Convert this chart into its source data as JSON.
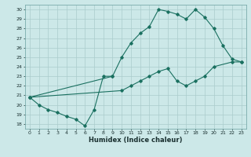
{
  "xlabel": "Humidex (Indice chaleur)",
  "xlim": [
    -0.5,
    23.5
  ],
  "ylim": [
    17.5,
    30.5
  ],
  "yticks": [
    18,
    19,
    20,
    21,
    22,
    23,
    24,
    25,
    26,
    27,
    28,
    29,
    30
  ],
  "xticks": [
    0,
    1,
    2,
    3,
    4,
    5,
    6,
    7,
    8,
    9,
    10,
    11,
    12,
    13,
    14,
    15,
    16,
    17,
    18,
    19,
    20,
    21,
    22,
    23
  ],
  "background_color": "#cce8e8",
  "grid_color": "#aacccc",
  "line_color": "#1a7060",
  "lines": [
    {
      "x": [
        0,
        1,
        2,
        3,
        4,
        5,
        6,
        7,
        8,
        9
      ],
      "y": [
        20.8,
        20.0,
        19.5,
        19.2,
        18.8,
        18.5,
        17.8,
        19.5,
        23.0,
        23.0
      ]
    },
    {
      "x": [
        0,
        9,
        10,
        11,
        12,
        13,
        14,
        15,
        16,
        17,
        18,
        19,
        20,
        21,
        22,
        23
      ],
      "y": [
        20.8,
        23.0,
        25.0,
        26.5,
        27.5,
        28.2,
        30.0,
        29.8,
        29.5,
        29.0,
        30.0,
        29.2,
        28.0,
        26.2,
        24.8,
        24.5
      ]
    },
    {
      "x": [
        0,
        10,
        11,
        12,
        13,
        14,
        15,
        16,
        17,
        18,
        19,
        20,
        22,
        23
      ],
      "y": [
        20.8,
        21.5,
        22.0,
        22.5,
        23.0,
        23.5,
        23.8,
        22.5,
        22.0,
        22.5,
        23.0,
        24.0,
        24.5,
        24.5
      ]
    }
  ]
}
